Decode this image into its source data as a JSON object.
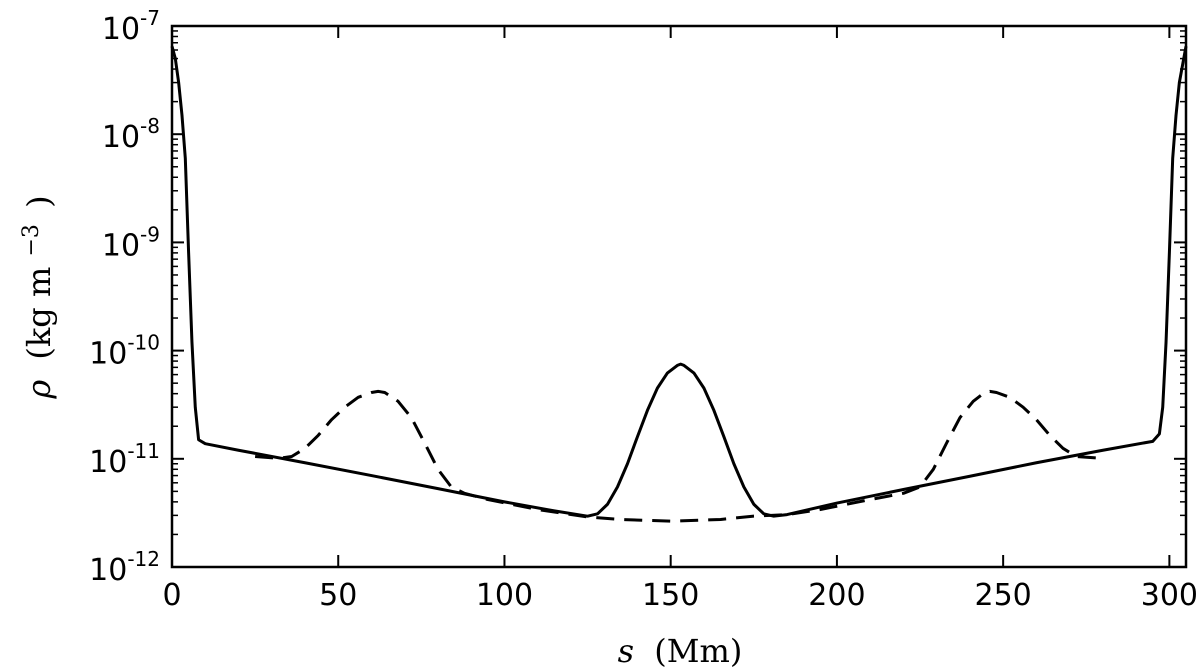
{
  "chart_data": {
    "type": "line",
    "title": "",
    "xlabel": "s (Mm)",
    "xlabel_var": "s",
    "xlabel_unit": "(Mm)",
    "ylabel": "ρ (kg m^-3)",
    "ylabel_var": "ρ",
    "ylabel_unit_open": "(kg m",
    "ylabel_unit_exp": "−3",
    "ylabel_unit_close": ")",
    "xlim": [
      0,
      305
    ],
    "ylim": [
      1e-12,
      1e-07
    ],
    "yscale": "log",
    "grid": false,
    "legend": "none",
    "x_ticks": [
      {
        "value": 0,
        "label": "0"
      },
      {
        "value": 50,
        "label": "50"
      },
      {
        "value": 100,
        "label": "100"
      },
      {
        "value": 150,
        "label": "150"
      },
      {
        "value": 200,
        "label": "200"
      },
      {
        "value": 250,
        "label": "250"
      },
      {
        "value": 300,
        "label": "300"
      }
    ],
    "y_ticks": [
      {
        "value": 1e-12,
        "base": "10",
        "exp": "-12"
      },
      {
        "value": 1e-11,
        "base": "10",
        "exp": "-11"
      },
      {
        "value": 1e-10,
        "base": "10",
        "exp": "-10"
      },
      {
        "value": 1e-09,
        "base": "10",
        "exp": "-9"
      },
      {
        "value": 1e-08,
        "base": "10",
        "exp": "-8"
      },
      {
        "value": 1e-07,
        "base": "10",
        "exp": "-7"
      }
    ],
    "series": [
      {
        "style": "solid",
        "color": "#000000",
        "x": [
          0,
          1,
          2,
          3,
          4,
          5,
          6,
          7,
          8,
          10,
          20,
          40,
          60,
          80,
          100,
          115,
          125,
          128,
          131,
          134,
          137,
          140,
          143,
          146,
          149,
          152,
          153,
          154,
          157,
          160,
          163,
          166,
          169,
          172,
          175,
          178,
          181,
          185,
          200,
          220,
          240,
          260,
          280,
          295,
          297,
          298,
          299,
          300,
          301,
          302,
          303,
          305
        ],
        "y": [
          6.5e-08,
          5e-08,
          3e-08,
          1.5e-08,
          6e-09,
          8e-10,
          1.2e-10,
          3e-11,
          1.5e-11,
          1.38e-11,
          1.2e-11,
          9.2e-12,
          7e-12,
          5.3e-12,
          4e-12,
          3.3e-12,
          2.95e-12,
          3.1e-12,
          3.8e-12,
          5.5e-12,
          9e-12,
          1.6e-11,
          2.8e-11,
          4.5e-11,
          6.2e-11,
          7.3e-11,
          7.5e-11,
          7.3e-11,
          6.2e-11,
          4.5e-11,
          2.8e-11,
          1.6e-11,
          9e-12,
          5.5e-12,
          3.8e-12,
          3.1e-12,
          2.95e-12,
          3.05e-12,
          3.9e-12,
          5.2e-12,
          6.9e-12,
          9.2e-12,
          1.2e-11,
          1.45e-11,
          1.7e-11,
          3e-11,
          1.2e-10,
          8e-10,
          6e-09,
          1.5e-08,
          3e-08,
          6.5e-08
        ]
      },
      {
        "style": "dashed",
        "color": "#000000",
        "x": [
          25,
          32,
          36,
          40,
          44,
          48,
          52,
          56,
          60,
          62,
          64,
          68,
          72,
          76,
          80,
          84,
          88,
          95,
          110,
          125,
          135,
          150,
          165,
          175,
          185,
          195,
          210,
          220,
          225,
          229,
          233,
          237,
          241,
          244,
          246,
          248,
          252,
          256,
          260,
          264,
          268,
          272,
          280
        ],
        "y": [
          1.05e-11,
          1.01e-11,
          1.05e-11,
          1.25e-11,
          1.65e-11,
          2.3e-11,
          3e-11,
          3.7e-11,
          4.1e-11,
          4.2e-11,
          4.1e-11,
          3.4e-11,
          2.4e-11,
          1.4e-11,
          8e-12,
          5.5e-12,
          4.8e-12,
          4.2e-12,
          3.4e-12,
          2.9e-12,
          2.75e-12,
          2.65e-12,
          2.75e-12,
          2.95e-12,
          3.05e-12,
          3.4e-12,
          4.2e-12,
          4.8e-12,
          5.5e-12,
          8e-12,
          1.4e-11,
          2.4e-11,
          3.4e-11,
          4e-11,
          4.2e-11,
          4.1e-11,
          3.7e-11,
          3e-11,
          2.3e-11,
          1.65e-11,
          1.25e-11,
          1.05e-11,
          1.01e-11
        ]
      }
    ]
  }
}
